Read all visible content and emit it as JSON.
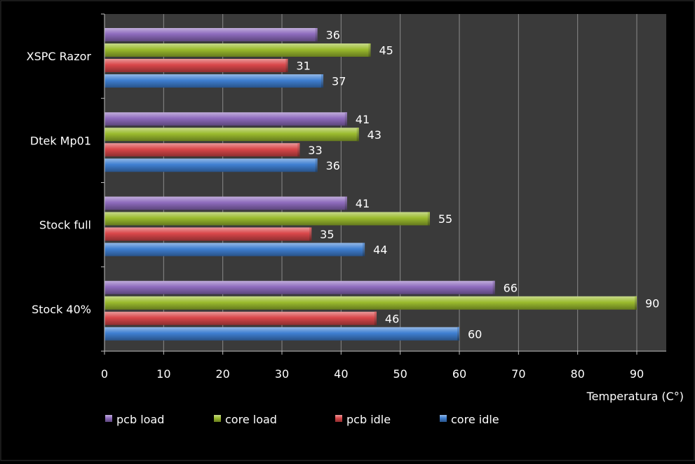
{
  "chart_data": {
    "type": "bar",
    "orientation": "horizontal",
    "title": "",
    "xlabel": "Temperatura (C°)",
    "ylabel": "",
    "xlim": [
      0,
      95
    ],
    "xticks": [
      0,
      10,
      20,
      30,
      40,
      50,
      60,
      70,
      80,
      90
    ],
    "grid": true,
    "legend_position": "bottom",
    "categories": [
      "XSPC Razor",
      "Dtek Mp01",
      "Stock full",
      "Stock 40%"
    ],
    "series": [
      {
        "name": "pcb load",
        "color": "#8e6bbd",
        "values": [
          36,
          41,
          41,
          66
        ]
      },
      {
        "name": "core load",
        "color": "#9bbb2e",
        "values": [
          45,
          43,
          55,
          90
        ]
      },
      {
        "name": "pcb idle",
        "color": "#d9474a",
        "values": [
          31,
          33,
          35,
          46
        ]
      },
      {
        "name": "core idle",
        "color": "#3f7fd1",
        "values": [
          37,
          36,
          44,
          60
        ]
      }
    ],
    "colors": {
      "plot_background": "#3a3a3a",
      "gridline": "#8a8a8a",
      "text": "#ffffff"
    }
  }
}
